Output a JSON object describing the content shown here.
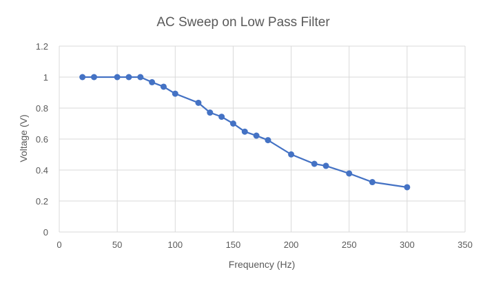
{
  "chart_data": {
    "type": "line",
    "title": "AC Sweep on Low Pass Filter",
    "xlabel": "Frequency (Hz)",
    "ylabel": "Voltage (V)",
    "xlim": [
      0,
      350
    ],
    "ylim": [
      0,
      1.2
    ],
    "xticks": [
      0,
      50,
      100,
      150,
      200,
      250,
      300,
      350
    ],
    "yticks": [
      0,
      0.2,
      0.4,
      0.6,
      0.8,
      1,
      1.2
    ],
    "xtick_labels": [
      "0",
      "50",
      "100",
      "150",
      "200",
      "250",
      "300",
      "350"
    ],
    "ytick_labels": [
      "0",
      "0.2",
      "0.4",
      "0.6",
      "0.8",
      "1",
      "1.2"
    ],
    "grid": true,
    "legend": "none",
    "markers": true,
    "series_color": "#4472C4",
    "grid_color": "#D9D9D9",
    "x": [
      20,
      30,
      50,
      60,
      70,
      80,
      90,
      100,
      120,
      130,
      140,
      150,
      160,
      170,
      180,
      200,
      220,
      230,
      250,
      270,
      300
    ],
    "y": [
      1.0,
      1.0,
      1.0,
      1.0,
      1.0,
      0.967,
      0.938,
      0.893,
      0.834,
      0.771,
      0.744,
      0.7,
      0.648,
      0.622,
      0.593,
      0.501,
      0.44,
      0.427,
      0.378,
      0.322,
      0.289
    ]
  }
}
